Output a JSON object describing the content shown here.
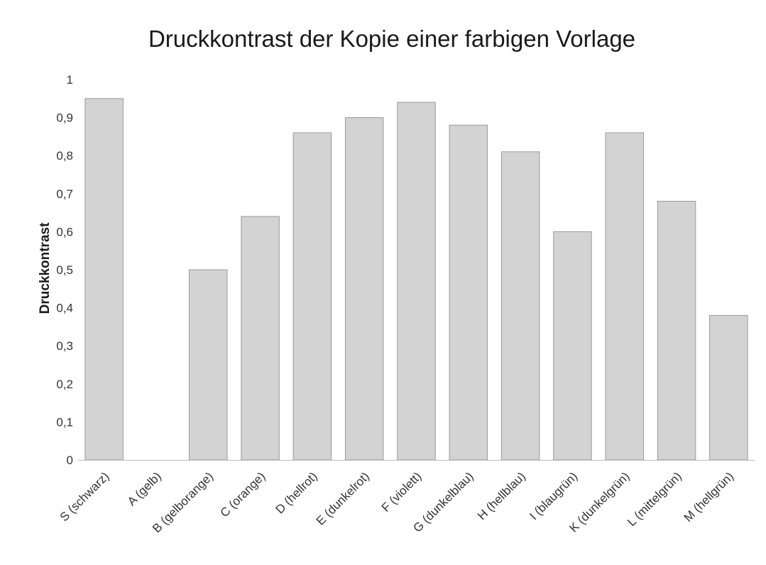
{
  "chart_data": {
    "type": "bar",
    "title": "Druckkontrast der Kopie einer farbigen Vorlage",
    "xlabel": "",
    "ylabel": "Druckkontrast",
    "ylim": [
      0,
      1
    ],
    "yticks": [
      "0",
      "0,1",
      "0,2",
      "0,3",
      "0,4",
      "0,5",
      "0,6",
      "0,7",
      "0,8",
      "0,9",
      "1"
    ],
    "grid": false,
    "categories": [
      "S (schwarz)",
      "A (gelb)",
      "B (gelborange)",
      "C (orange)",
      "D (hellrot)",
      "E (dunkelrot)",
      "F (violett)",
      "G (dunkelblau)",
      "H (hellblau)",
      "I (blaugrün)",
      "K (dunkelgrün)",
      "L (mittelgrün)",
      "M (hellgrün)"
    ],
    "values": [
      0.95,
      0,
      0.5,
      0.64,
      0.86,
      0.9,
      0.94,
      0.88,
      0.81,
      0.6,
      0.86,
      0.68,
      0.38
    ],
    "bar_color": "#d3d3d3",
    "bar_edge_color": "#9a9a9a"
  }
}
